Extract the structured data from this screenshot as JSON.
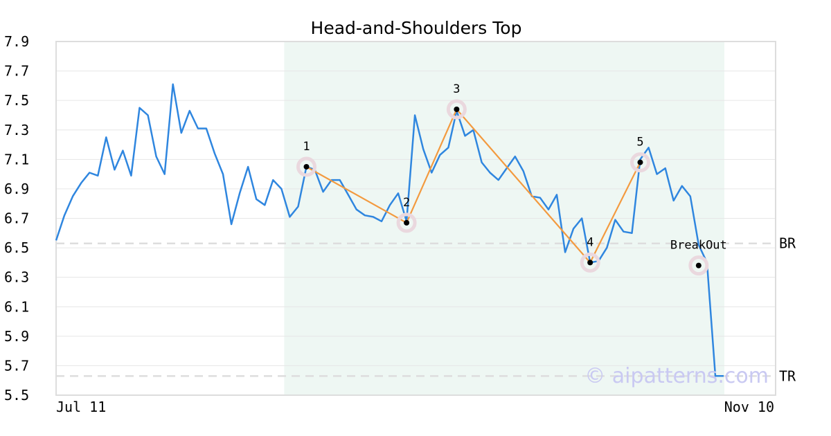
{
  "chart_data": {
    "type": "line",
    "title": "Head-and-Shoulders Top",
    "xlabel": "",
    "ylabel": "",
    "ylim": [
      5.5,
      7.9
    ],
    "y_ticks": [
      "7.9",
      "7.7",
      "7.5",
      "7.3",
      "7.1",
      "6.9",
      "6.7",
      "6.5",
      "6.3",
      "6.1",
      "5.9",
      "5.7",
      "5.5"
    ],
    "x_tick_labels": [
      "Jul 11",
      "Nov 10"
    ],
    "grid": true,
    "colors": {
      "price_line": "#2f86df",
      "pattern_line": "#f39a3f",
      "pattern_region": "#eef7f3",
      "marker_halo": "#ead8de",
      "marker_dot": "#000000",
      "level_line": "#dddddd",
      "grid": "#e6e6e6",
      "frame": "#dddddd"
    },
    "series": [
      {
        "values": [
          6.55,
          6.72,
          6.85,
          6.94,
          7.01,
          6.99,
          7.25,
          7.03,
          7.16,
          6.99,
          7.45,
          7.4,
          7.12,
          7.0,
          7.61,
          7.28,
          7.43,
          7.31,
          7.31,
          7.14,
          7.0,
          6.66,
          6.87,
          7.05,
          6.83,
          6.79,
          6.96,
          6.9,
          6.71,
          6.78,
          7.05,
          7.03,
          6.88,
          6.96,
          6.96,
          6.86,
          6.76,
          6.72,
          6.71,
          6.68,
          6.79,
          6.87,
          6.68,
          7.4,
          7.17,
          7.01,
          7.13,
          7.18,
          7.43,
          7.26,
          7.3,
          7.08,
          7.01,
          6.96,
          7.04,
          7.12,
          7.02,
          6.85,
          6.84,
          6.76,
          6.86,
          6.47,
          6.63,
          6.7,
          6.4,
          6.41,
          6.5,
          6.69,
          6.61,
          6.6,
          7.1,
          7.18,
          7.0,
          7.04,
          6.82,
          6.92,
          6.85,
          6.52,
          6.4,
          5.63,
          5.63
        ]
      }
    ],
    "pattern_points": [
      {
        "label": "1",
        "index": 30,
        "value": 7.05
      },
      {
        "label": "2",
        "index": 42,
        "value": 6.67
      },
      {
        "label": "3",
        "index": 48,
        "value": 7.44
      },
      {
        "label": "4",
        "index": 64,
        "value": 6.4
      },
      {
        "label": "5",
        "index": 70,
        "value": 7.08
      }
    ],
    "breakout": {
      "label": "BreakOut",
      "index": 77,
      "value": 6.38
    },
    "pattern_region": {
      "start_index": 28,
      "end_index": 80
    },
    "levels": [
      {
        "label": "BR",
        "value": 6.53
      },
      {
        "label": "TR",
        "value": 5.63
      }
    ],
    "watermark": "© aipatterns.com"
  }
}
